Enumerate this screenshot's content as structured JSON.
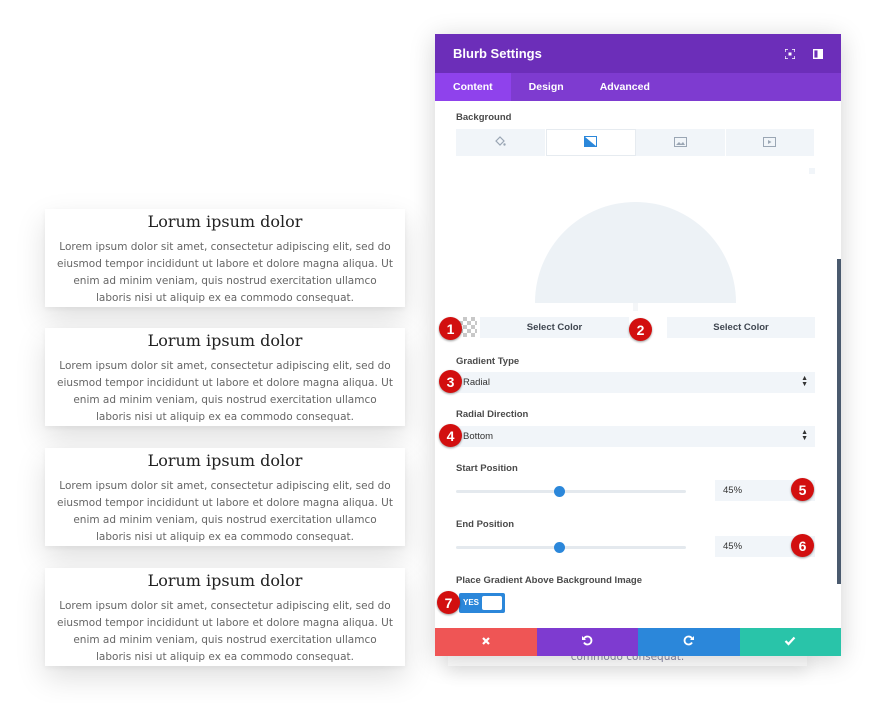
{
  "cards": [
    {
      "title": "Lorum ipsum dolor",
      "body": "Lorem ipsum dolor sit amet, consectetur adipiscing elit, sed do eiusmod tempor incididunt ut labore et dolore magna aliqua. Ut enim ad minim veniam, quis nostrud exercitation ullamco laboris nisi ut aliquip ex ea commodo consequat."
    },
    {
      "title": "Lorum ipsum dolor",
      "body": "Lorem ipsum dolor sit amet, consectetur adipiscing elit, sed do eiusmod tempor incididunt ut labore et dolore magna aliqua. Ut enim ad minim veniam, quis nostrud exercitation ullamco laboris nisi ut aliquip ex ea commodo consequat."
    },
    {
      "title": "Lorum ipsum dolor",
      "body": "Lorem ipsum dolor sit amet, consectetur adipiscing elit, sed do eiusmod tempor incididunt ut labore et dolore magna aliqua. Ut enim ad minim veniam, quis nostrud exercitation ullamco laboris nisi ut aliquip ex ea commodo consequat."
    },
    {
      "title": "Lorum ipsum dolor",
      "body": "Lorem ipsum dolor sit amet, consectetur adipiscing elit, sed do eiusmod tempor incididunt ut labore et dolore magna aliqua. Ut enim ad minim veniam, quis nostrud exercitation ullamco laboris nisi ut aliquip ex ea commodo consequat."
    }
  ],
  "behind_text": "commodo consequat.",
  "panel": {
    "title": "Blurb Settings",
    "header_icons": [
      "fullscreen-icon",
      "sidebar-icon"
    ],
    "tabs": [
      "Content",
      "Design",
      "Advanced"
    ],
    "active_tab": "Content",
    "background_label": "Background",
    "background_types": [
      "color-icon",
      "gradient-icon",
      "image-icon",
      "video-icon"
    ],
    "active_background_type": "gradient-icon",
    "color_button_1": "Select Color",
    "color_button_2": "Select Color",
    "gradient_type_label": "Gradient Type",
    "gradient_type_value": "Radial",
    "radial_direction_label": "Radial Direction",
    "radial_direction_value": "Bottom",
    "start_position_label": "Start Position",
    "start_position_value": "45%",
    "start_position_level": 0.45,
    "end_position_label": "End Position",
    "end_position_value": "45%",
    "end_position_level": 0.45,
    "above_image_label": "Place Gradient Above Background Image",
    "toggle_label": "YES",
    "footer_buttons": [
      "cancel-icon",
      "undo-icon",
      "redo-icon",
      "save-check-icon"
    ]
  },
  "badges": [
    "1",
    "2",
    "3",
    "4",
    "5",
    "6",
    "7"
  ],
  "colors": {
    "header": "#6c2eb9",
    "tabs": "#7e3bd0",
    "active_tab": "#8f42ec",
    "accent_blue": "#2b87da",
    "cancel": "#ef5555",
    "undo": "#7e3bd0",
    "redo": "#2b87da",
    "save": "#29c4a9",
    "badge": "#d20f0f"
  }
}
